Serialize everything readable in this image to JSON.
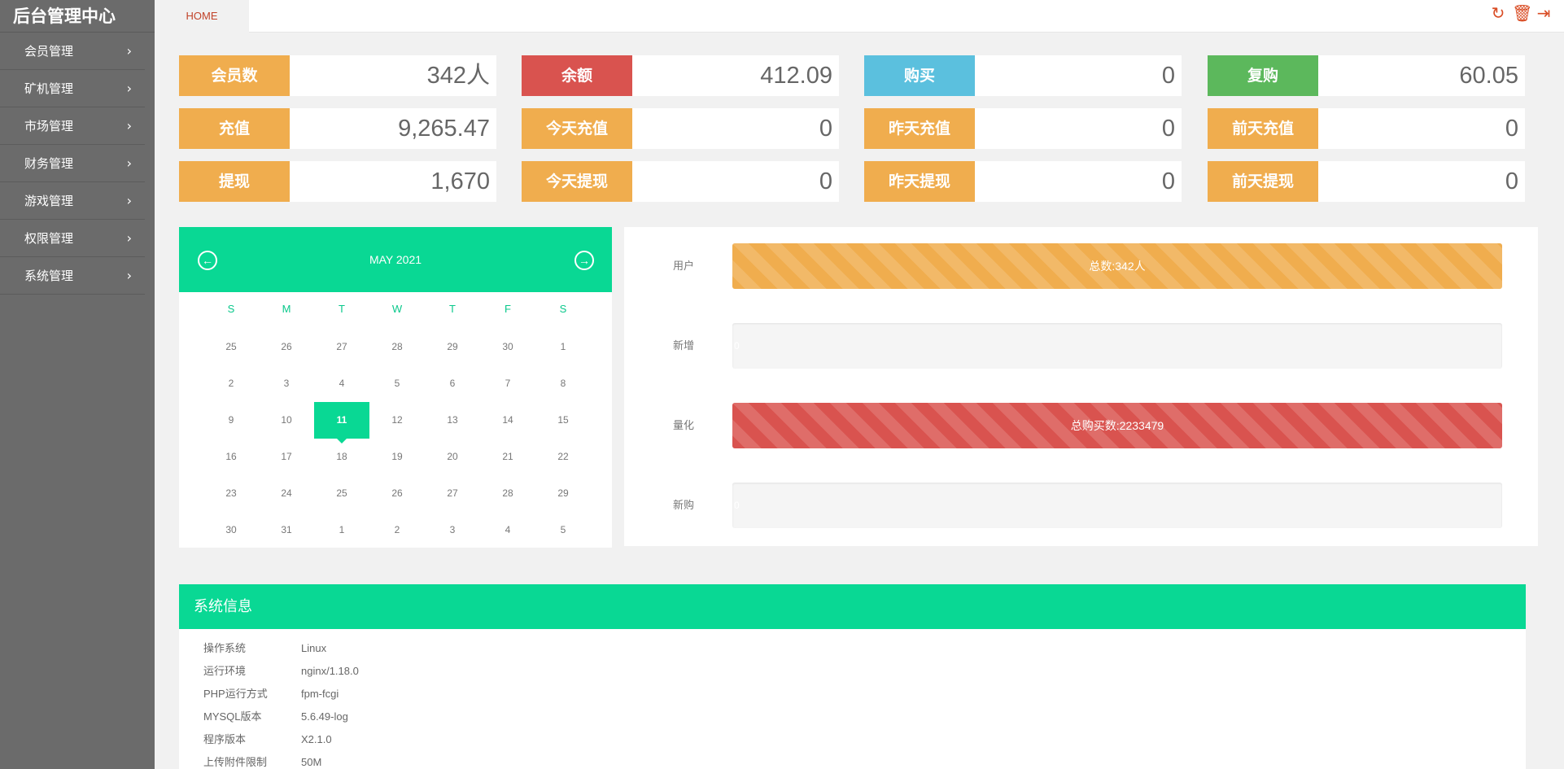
{
  "app": {
    "brand": "后台管理中心"
  },
  "sidebar": {
    "items": [
      {
        "label": "会员管理"
      },
      {
        "label": "矿机管理"
      },
      {
        "label": "市场管理"
      },
      {
        "label": "财务管理"
      },
      {
        "label": "游戏管理"
      },
      {
        "label": "权限管理"
      },
      {
        "label": "系统管理"
      }
    ]
  },
  "topbar": {
    "home_tab": "HOME",
    "icons": [
      "refresh-icon",
      "trash-icon",
      "logout-icon"
    ]
  },
  "stats": [
    {
      "label": "会员数",
      "value": "342人",
      "color": "#f0ad4e"
    },
    {
      "label": "余额",
      "value": "412.09",
      "color": "#d9534f"
    },
    {
      "label": "购买",
      "value": "0",
      "color": "#5bc0de"
    },
    {
      "label": "复购",
      "value": "60.05",
      "color": "#5cb85c"
    },
    {
      "label": "充值",
      "value": "9,265.47",
      "color": "#f0ad4e"
    },
    {
      "label": "今天充值",
      "value": "0",
      "color": "#f0ad4e"
    },
    {
      "label": "昨天充值",
      "value": "0",
      "color": "#f0ad4e"
    },
    {
      "label": "前天充值",
      "value": "0",
      "color": "#f0ad4e"
    },
    {
      "label": "提现",
      "value": "1,670",
      "color": "#f0ad4e"
    },
    {
      "label": "今天提现",
      "value": "0",
      "color": "#f0ad4e"
    },
    {
      "label": "昨天提现",
      "value": "0",
      "color": "#f0ad4e"
    },
    {
      "label": "前天提现",
      "value": "0",
      "color": "#f0ad4e"
    }
  ],
  "calendar": {
    "title": "MAY 2021",
    "weekdays": [
      "S",
      "M",
      "T",
      "W",
      "T",
      "F",
      "S"
    ],
    "weeks": [
      [
        "25",
        "26",
        "27",
        "28",
        "29",
        "30",
        "1"
      ],
      [
        "2",
        "3",
        "4",
        "5",
        "6",
        "7",
        "8"
      ],
      [
        "9",
        "10",
        "11",
        "12",
        "13",
        "14",
        "15"
      ],
      [
        "16",
        "17",
        "18",
        "19",
        "20",
        "21",
        "22"
      ],
      [
        "23",
        "24",
        "25",
        "26",
        "27",
        "28",
        "29"
      ],
      [
        "30",
        "31",
        "1",
        "2",
        "3",
        "4",
        "5"
      ]
    ],
    "today": "11"
  },
  "progress": {
    "rows": [
      {
        "label": "用户",
        "text": "总数:342人",
        "percent": 100,
        "style": "orange"
      },
      {
        "label": "新增",
        "text": "0",
        "percent": 0,
        "style": "empty"
      },
      {
        "label": "量化",
        "text": "总购买数:2233479",
        "percent": 100,
        "style": "red"
      },
      {
        "label": "新购",
        "text": "0",
        "percent": 0,
        "style": "empty"
      }
    ]
  },
  "sysinfo": {
    "title": "系统信息",
    "rows": [
      {
        "k": "操作系统",
        "v": "Linux"
      },
      {
        "k": "运行环境",
        "v": "nginx/1.18.0"
      },
      {
        "k": "PHP运行方式",
        "v": "fpm-fcgi"
      },
      {
        "k": "MYSQL版本",
        "v": "5.6.49-log"
      },
      {
        "k": "程序版本",
        "v": "X2.1.0"
      },
      {
        "k": "上传附件限制",
        "v": "50M"
      }
    ]
  }
}
